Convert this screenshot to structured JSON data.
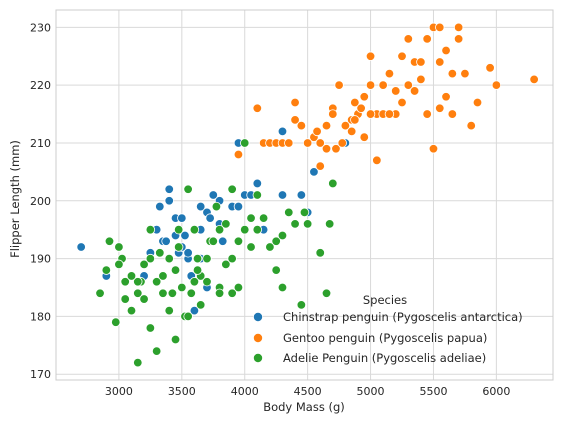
{
  "chart_data": {
    "type": "scatter",
    "title": "",
    "xlabel": "Body Mass (g)",
    "ylabel": "Flipper Length (mm)",
    "xlim": [
      2500,
      6450
    ],
    "ylim": [
      169,
      233
    ],
    "xticks": [
      3000,
      3500,
      4000,
      4500,
      5000,
      5500,
      6000
    ],
    "yticks": [
      170,
      180,
      190,
      200,
      210,
      220,
      230
    ],
    "grid": true,
    "legend": {
      "title": "Species",
      "placement": "lower-right"
    },
    "series": [
      {
        "name": "Chinstrap penguin (Pygoscelis antarctica)",
        "color": "#1f77b4",
        "points": [
          [
            2700,
            192
          ],
          [
            2900,
            187
          ],
          [
            3200,
            187
          ],
          [
            3250,
            191
          ],
          [
            3300,
            195
          ],
          [
            3325,
            199
          ],
          [
            3350,
            193
          ],
          [
            3400,
            202
          ],
          [
            3400,
            200
          ],
          [
            3450,
            197
          ],
          [
            3475,
            191
          ],
          [
            3500,
            197
          ],
          [
            3500,
            192
          ],
          [
            3525,
            194
          ],
          [
            3550,
            190
          ],
          [
            3600,
            195
          ],
          [
            3650,
            195
          ],
          [
            3700,
            198
          ],
          [
            3725,
            197
          ],
          [
            3750,
            201
          ],
          [
            3800,
            200
          ],
          [
            3825,
            193
          ],
          [
            3600,
            181
          ],
          [
            3700,
            185
          ],
          [
            3650,
            199
          ],
          [
            3800,
            196
          ],
          [
            3900,
            199
          ],
          [
            3950,
            210
          ],
          [
            4000,
            201
          ],
          [
            4050,
            201
          ],
          [
            4100,
            203
          ],
          [
            4150,
            195
          ],
          [
            4300,
            212
          ],
          [
            4300,
            201
          ],
          [
            4450,
            201
          ],
          [
            4550,
            205
          ],
          [
            4500,
            198
          ],
          [
            4800,
            210
          ],
          [
            3950,
            199
          ],
          [
            3575,
            187
          ],
          [
            3450,
            194
          ],
          [
            3375,
            193
          ],
          [
            3550,
            191
          ],
          [
            3650,
            190
          ]
        ]
      },
      {
        "name": "Gentoo penguin (Pygoscelis papua)",
        "color": "#ff7f0e",
        "points": [
          [
            3950,
            208
          ],
          [
            4100,
            216
          ],
          [
            4150,
            210
          ],
          [
            4200,
            210
          ],
          [
            4250,
            210
          ],
          [
            4300,
            210
          ],
          [
            4350,
            210
          ],
          [
            4400,
            217
          ],
          [
            4400,
            214
          ],
          [
            4450,
            213
          ],
          [
            4500,
            210
          ],
          [
            4550,
            211
          ],
          [
            4600,
            210
          ],
          [
            4650,
            213
          ],
          [
            4700,
            216
          ],
          [
            4750,
            220
          ],
          [
            4700,
            215
          ],
          [
            4800,
            213
          ],
          [
            4850,
            214
          ],
          [
            4900,
            215
          ],
          [
            4875,
            217
          ],
          [
            4950,
            218
          ],
          [
            5000,
            220
          ],
          [
            5000,
            225
          ],
          [
            5050,
            215
          ],
          [
            5100,
            220
          ],
          [
            5150,
            222
          ],
          [
            5200,
            215
          ],
          [
            5250,
            217
          ],
          [
            5300,
            220
          ],
          [
            5350,
            224
          ],
          [
            5400,
            224
          ],
          [
            5450,
            215
          ],
          [
            5500,
            230
          ],
          [
            5550,
            224
          ],
          [
            5600,
            226
          ],
          [
            5650,
            215
          ],
          [
            5700,
            228
          ],
          [
            5750,
            222
          ],
          [
            5800,
            213
          ],
          [
            5950,
            223
          ],
          [
            6000,
            220
          ],
          [
            6300,
            221
          ],
          [
            4600,
            206
          ],
          [
            5050,
            207
          ],
          [
            5500,
            209
          ],
          [
            5200,
            219
          ],
          [
            4850,
            212
          ],
          [
            4725,
            209
          ],
          [
            4925,
            216
          ],
          [
            5300,
            228
          ],
          [
            5550,
            216
          ],
          [
            5400,
            221
          ],
          [
            4650,
            209
          ],
          [
            5100,
            215
          ],
          [
            5600,
            218
          ],
          [
            5850,
            217
          ],
          [
            5250,
            225
          ],
          [
            5700,
            230
          ],
          [
            4875,
            214
          ],
          [
            5000,
            215
          ],
          [
            4950,
            211
          ],
          [
            5450,
            228
          ],
          [
            5350,
            219
          ],
          [
            4775,
            210
          ],
          [
            4575,
            212
          ],
          [
            5150,
            215
          ],
          [
            5550,
            230
          ],
          [
            5650,
            222
          ]
        ]
      },
      {
        "name": "Adelie Penguin (Pygoscelis adeliae)",
        "color": "#2ca02c",
        "points": [
          [
            2850,
            184
          ],
          [
            2900,
            188
          ],
          [
            2925,
            193
          ],
          [
            2975,
            179
          ],
          [
            3000,
            192
          ],
          [
            3025,
            190
          ],
          [
            3050,
            186
          ],
          [
            3050,
            183
          ],
          [
            3100,
            181
          ],
          [
            3150,
            184
          ],
          [
            3150,
            172
          ],
          [
            3175,
            186
          ],
          [
            3200,
            189
          ],
          [
            3250,
            178
          ],
          [
            3250,
            190
          ],
          [
            3300,
            186
          ],
          [
            3325,
            191
          ],
          [
            3350,
            187
          ],
          [
            3400,
            181
          ],
          [
            3425,
            184
          ],
          [
            3450,
            176
          ],
          [
            3475,
            195
          ],
          [
            3500,
            185
          ],
          [
            3525,
            180
          ],
          [
            3550,
            202
          ],
          [
            3575,
            184
          ],
          [
            3600,
            195
          ],
          [
            3625,
            190
          ],
          [
            3650,
            187
          ],
          [
            3700,
            190
          ],
          [
            3725,
            193
          ],
          [
            3775,
            199
          ],
          [
            3800,
            195
          ],
          [
            3850,
            189
          ],
          [
            3900,
            202
          ],
          [
            3950,
            185
          ],
          [
            4000,
            195
          ],
          [
            4050,
            192
          ],
          [
            4100,
            195
          ],
          [
            4150,
            197
          ],
          [
            4200,
            192
          ],
          [
            4250,
            193
          ],
          [
            4300,
            185
          ],
          [
            4350,
            198
          ],
          [
            4400,
            196
          ],
          [
            4450,
            182
          ],
          [
            4500,
            196
          ],
          [
            4600,
            191
          ],
          [
            4650,
            184
          ],
          [
            4700,
            203
          ],
          [
            3300,
            174
          ],
          [
            3450,
            188
          ],
          [
            3650,
            182
          ],
          [
            3900,
            184
          ],
          [
            4000,
            210
          ],
          [
            3200,
            183
          ],
          [
            3600,
            186
          ],
          [
            3750,
            193
          ],
          [
            4100,
            201
          ],
          [
            3400,
            190
          ],
          [
            3350,
            184
          ],
          [
            3800,
            185
          ],
          [
            3700,
            186
          ],
          [
            4250,
            188
          ],
          [
            3150,
            186
          ],
          [
            3550,
            180
          ],
          [
            3950,
            193
          ],
          [
            4475,
            198
          ],
          [
            4050,
            197
          ],
          [
            3475,
            192
          ],
          [
            3625,
            188
          ],
          [
            3850,
            196
          ],
          [
            3000,
            189
          ],
          [
            3100,
            187
          ],
          [
            3250,
            195
          ],
          [
            3800,
            184
          ],
          [
            3900,
            190
          ],
          [
            4300,
            194
          ],
          [
            4675,
            196
          ]
        ]
      }
    ]
  }
}
